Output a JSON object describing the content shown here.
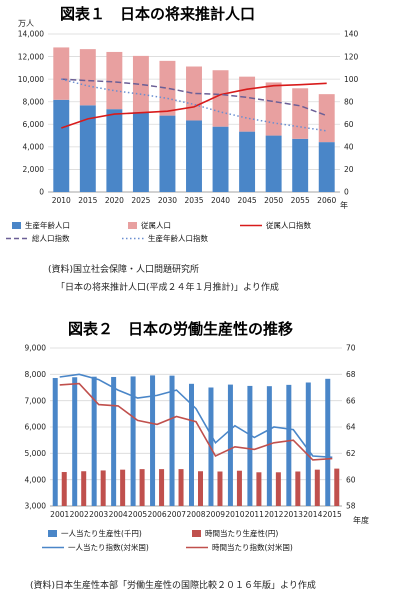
{
  "chart_data": [
    {
      "type": "bar",
      "title": "図表１　日本の将来推計人口",
      "y_unit_label": "万人",
      "x_unit_label": "年",
      "categories": [
        "2010",
        "2015",
        "2020",
        "2025",
        "2030",
        "2035",
        "2040",
        "2045",
        "2050",
        "2055",
        "2060"
      ],
      "ylim_left": [
        0,
        14000
      ],
      "yticks_left": [
        "0",
        "2,000",
        "4,000",
        "6,000",
        "8,000",
        "10,000",
        "12,000",
        "14,000"
      ],
      "ylim_right": [
        0,
        140
      ],
      "yticks_right": [
        "0",
        "20",
        "40",
        "60",
        "80",
        "100",
        "120",
        "140"
      ],
      "stacked": true,
      "series": [
        {
          "name": "生産年齢人口",
          "kind": "bar",
          "axis": "left",
          "color": "#4a86c8",
          "values": [
            8170,
            7680,
            7340,
            7080,
            6770,
            6340,
            5790,
            5350,
            5000,
            4710,
            4420
          ]
        },
        {
          "name": "従属人口",
          "kind": "bar",
          "axis": "left",
          "color": "#e8a0a0",
          "values": [
            4640,
            4980,
            5070,
            4980,
            4850,
            4780,
            5000,
            4870,
            4710,
            4480,
            4250
          ]
        },
        {
          "name": "従属人口指数",
          "kind": "line",
          "axis": "right",
          "color": "#d81b1b",
          "dash": "solid",
          "values": [
            56.7,
            64.8,
            69.0,
            70.3,
            71.6,
            75.4,
            86.3,
            91.1,
            94.2,
            95.1,
            96.3
          ]
        },
        {
          "name": "総人口指数",
          "kind": "line",
          "axis": "right",
          "color": "#6b5f96",
          "dash": "dash",
          "values": [
            100,
            98.7,
            97.6,
            95.3,
            92.0,
            87.4,
            86.5,
            83.8,
            80.2,
            76.4,
            67.7
          ]
        },
        {
          "name": "生産年齢人口指数",
          "kind": "line",
          "axis": "right",
          "color": "#6a8ed0",
          "dash": "dot",
          "values": [
            100,
            94.0,
            89.8,
            86.7,
            82.9,
            77.6,
            70.9,
            65.5,
            61.2,
            57.7,
            54.1
          ]
        }
      ],
      "source_lines": [
        "(資料)国立社会保障・人口問題研究所",
        "「日本の将来推計人口(平成２４年１月推計)」より作成"
      ]
    },
    {
      "type": "bar",
      "title": "図表２　日本の労働生産性の推移",
      "x_unit_label": "年度",
      "categories": [
        "2001",
        "2002",
        "2003",
        "2004",
        "2005",
        "2006",
        "2007",
        "2008",
        "2009",
        "2010",
        "2011",
        "2012",
        "2013",
        "2014",
        "2015"
      ],
      "ylim_left": [
        3000,
        9000
      ],
      "yticks_left": [
        "3,000",
        "4,000",
        "5,000",
        "6,000",
        "7,000",
        "8,000",
        "9,000"
      ],
      "ylim_right": [
        58,
        70
      ],
      "yticks_right": [
        "58",
        "60",
        "62",
        "64",
        "66",
        "68",
        "70"
      ],
      "stacked": false,
      "series": [
        {
          "name": "一人当たり生産性(千円)",
          "kind": "bar",
          "axis": "left",
          "color": "#4a86c8",
          "values": [
            7860,
            7890,
            7910,
            7900,
            7920,
            7960,
            7950,
            7640,
            7500,
            7610,
            7560,
            7550,
            7600,
            7690,
            7830
          ]
        },
        {
          "name": "時間当たり生産性(円)",
          "kind": "bar",
          "axis": "left",
          "color": "#c0504d",
          "values": [
            4290,
            4320,
            4350,
            4380,
            4400,
            4400,
            4400,
            4320,
            4310,
            4340,
            4280,
            4280,
            4310,
            4380,
            4420
          ]
        },
        {
          "name": "一人当たり指数(対米国)",
          "kind": "line",
          "axis": "right",
          "color": "#4a86c8",
          "dash": "solid",
          "values": [
            67.8,
            68.0,
            67.6,
            66.8,
            66.2,
            66.4,
            66.8,
            65.4,
            62.8,
            64.1,
            63.2,
            64.0,
            63.8,
            61.8,
            61.7
          ]
        },
        {
          "name": "時間当たり指数(対米国)",
          "kind": "line",
          "axis": "right",
          "color": "#c0504d",
          "dash": "solid",
          "values": [
            67.2,
            67.3,
            65.7,
            65.6,
            64.5,
            64.2,
            64.8,
            64.4,
            61.8,
            62.5,
            62.3,
            62.8,
            63.0,
            61.5,
            61.6
          ]
        }
      ],
      "source_lines": [
        "(資料)日本生産性本部「労働生産性の国際比較２０１６年版」より作成"
      ]
    }
  ]
}
